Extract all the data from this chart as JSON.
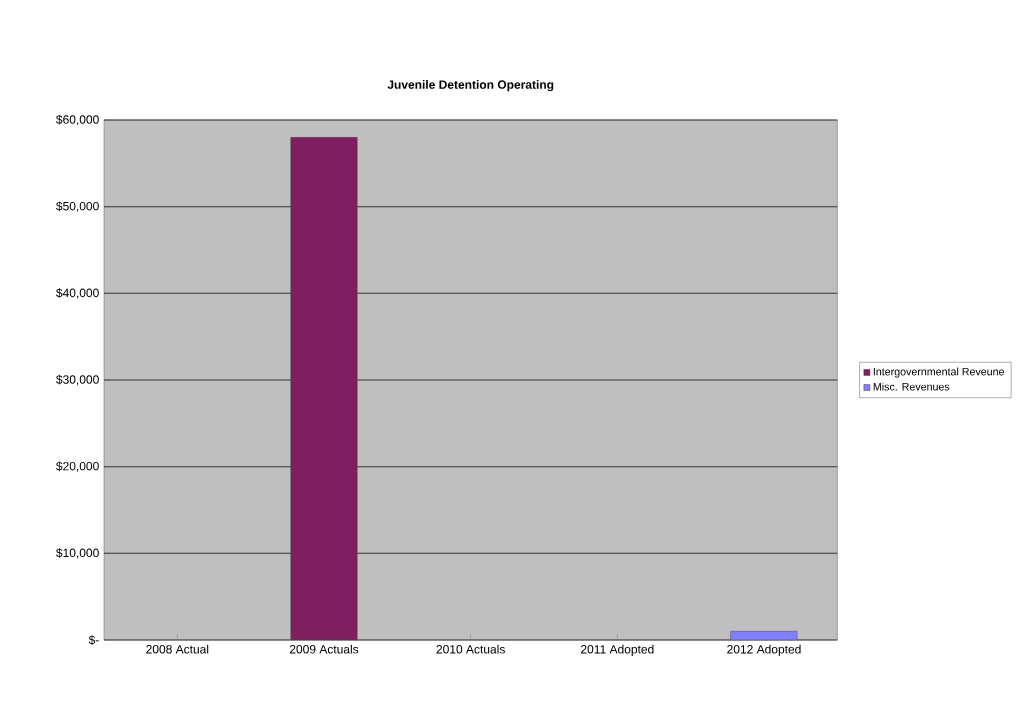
{
  "chart_data": {
    "type": "bar",
    "stacked": true,
    "title": "Juvenile Detention Operating",
    "categories": [
      "2008 Actual",
      "2009 Actuals",
      "2010 Actuals",
      "2011 Adopted",
      "2012 Adopted"
    ],
    "series": [
      {
        "name": "Intergovernmental Reveune",
        "color": "#7f1f5f",
        "values": [
          0,
          58000,
          0,
          0,
          0
        ]
      },
      {
        "name": "Misc. Revenues",
        "color": "#8080ff",
        "values": [
          0,
          0,
          0,
          0,
          1000
        ]
      }
    ],
    "ylim": [
      0,
      60000
    ],
    "yticks": [
      {
        "value": 0,
        "label": "$-"
      },
      {
        "value": 10000,
        "label": "$10,000"
      },
      {
        "value": 20000,
        "label": "$20,000"
      },
      {
        "value": 30000,
        "label": "$30,000"
      },
      {
        "value": 40000,
        "label": "$40,000"
      },
      {
        "value": 50000,
        "label": "$50,000"
      },
      {
        "value": 60000,
        "label": "$60,000"
      }
    ],
    "grid": "y",
    "legend": "right"
  }
}
